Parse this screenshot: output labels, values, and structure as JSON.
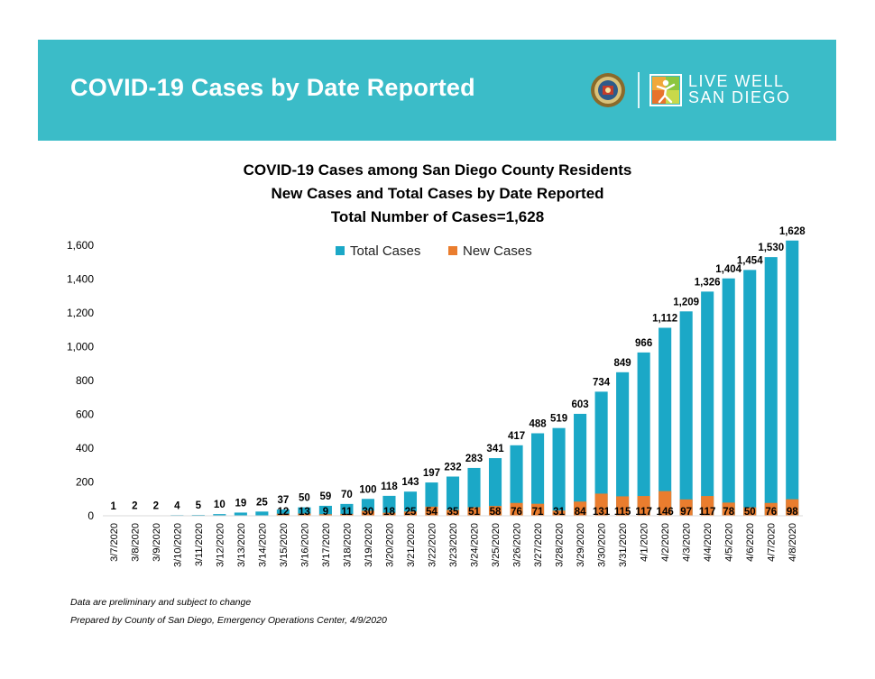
{
  "banner": {
    "title": "COVID-19 Cases by Date Reported",
    "brand_line1": "LIVE WELL",
    "brand_line2": "SAN DIEGO",
    "seal_icon": "county-seal-icon",
    "brand_icon": "live-well-figure-icon",
    "color": "#3bbcc8"
  },
  "footnotes": {
    "line1": "Data are preliminary and subject to change",
    "line2": "Prepared by County of San Diego, Emergency Operations Center, 4/9/2020"
  },
  "chart_data": {
    "type": "bar",
    "title": [
      "COVID-19 Cases among San Diego County Residents",
      "New Cases and Total Cases by Date Reported",
      "Total Number of Cases=1,628"
    ],
    "xlabel": "",
    "ylabel": "",
    "ylim": [
      0,
      1600
    ],
    "yticks": [
      0,
      200,
      400,
      600,
      800,
      1000,
      1200,
      1400,
      1600
    ],
    "ytick_labels": [
      "0",
      "200",
      "400",
      "600",
      "800",
      "1,000",
      "1,200",
      "1,400",
      "1,600"
    ],
    "grid": false,
    "legend_position": "top",
    "categories": [
      "3/7/2020",
      "3/8/2020",
      "3/9/2020",
      "3/10/2020",
      "3/11/2020",
      "3/12/2020",
      "3/13/2020",
      "3/14/2020",
      "3/15/2020",
      "3/16/2020",
      "3/17/2020",
      "3/18/2020",
      "3/19/2020",
      "3/20/2020",
      "3/21/2020",
      "3/22/2020",
      "3/23/2020",
      "3/24/2020",
      "3/25/2020",
      "3/26/2020",
      "3/27/2020",
      "3/28/2020",
      "3/29/2020",
      "3/30/2020",
      "3/31/2020",
      "4/1/2020",
      "4/2/2020",
      "4/3/2020",
      "4/4/2020",
      "4/5/2020",
      "4/6/2020",
      "4/7/2020",
      "4/8/2020"
    ],
    "series": [
      {
        "name": "Total Cases",
        "color": "#1ba8c7",
        "values": [
          1,
          2,
          2,
          4,
          5,
          10,
          19,
          25,
          37,
          50,
          59,
          70,
          100,
          118,
          143,
          197,
          232,
          283,
          341,
          417,
          488,
          519,
          603,
          734,
          849,
          966,
          1112,
          1209,
          1326,
          1404,
          1454,
          1530,
          1628
        ],
        "labels": [
          "1",
          "2",
          "2",
          "4",
          "5",
          "10",
          "19",
          "25",
          "37",
          "50",
          "59",
          "70",
          "100",
          "118",
          "143",
          "197",
          "232",
          "283",
          "341",
          "417",
          "488",
          "519",
          "603",
          "734",
          "849",
          "966",
          "1,112",
          "1,209",
          "1,326",
          "1,404",
          "1,454",
          "1,530",
          "1,628"
        ]
      },
      {
        "name": "New Cases",
        "color": "#ea7d2e",
        "values": [
          null,
          null,
          null,
          null,
          null,
          null,
          null,
          null,
          12,
          13,
          9,
          11,
          30,
          18,
          25,
          54,
          35,
          51,
          58,
          76,
          71,
          31,
          84,
          131,
          115,
          117,
          146,
          97,
          117,
          78,
          50,
          76,
          98
        ],
        "labels": [
          "",
          "",
          "",
          "",
          "",
          "",
          "",
          "",
          "12",
          "13",
          "9",
          "11",
          "30",
          "18",
          "25",
          "54",
          "35",
          "51",
          "58",
          "76",
          "71",
          "31",
          "84",
          "131",
          "115",
          "117",
          "146",
          "97",
          "117",
          "78",
          "50",
          "76",
          "98"
        ]
      }
    ]
  }
}
